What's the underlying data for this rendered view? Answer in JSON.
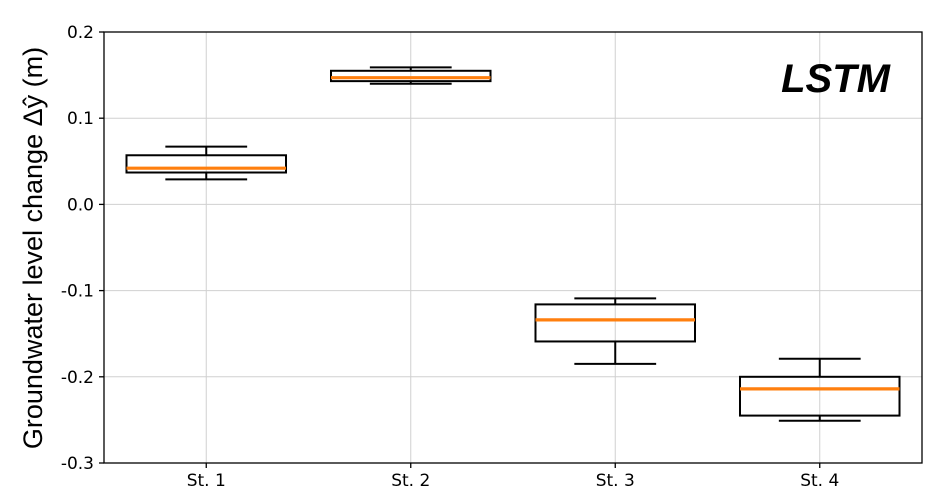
{
  "chart_data": {
    "type": "box",
    "title": "",
    "xlabel": "",
    "ylabel": "Groundwater level change Δŷ (m)",
    "annotation": "LSTM",
    "categories": [
      "St. 1",
      "St. 2",
      "St. 3",
      "St. 4"
    ],
    "y_ticks": [
      "0.2",
      "0.1",
      "0.0",
      "-0.1",
      "-0.2",
      "-0.3"
    ],
    "y_tick_values": [
      0.2,
      0.1,
      0.0,
      -0.1,
      -0.2,
      -0.3
    ],
    "ylim": [
      -0.3,
      0.2
    ],
    "grid": true,
    "box_color": "#000000",
    "median_color": "#ff7f0e",
    "boxes": [
      {
        "label": "St. 1",
        "whislo": 0.029,
        "q1": 0.037,
        "median": 0.042,
        "q3": 0.057,
        "whishi": 0.067
      },
      {
        "label": "St. 2",
        "whislo": 0.14,
        "q1": 0.143,
        "median": 0.147,
        "q3": 0.155,
        "whishi": 0.159
      },
      {
        "label": "St. 3",
        "whislo": -0.185,
        "q1": -0.159,
        "median": -0.134,
        "q3": -0.116,
        "whishi": -0.109
      },
      {
        "label": "St. 4",
        "whislo": -0.251,
        "q1": -0.245,
        "median": -0.214,
        "q3": -0.2,
        "whishi": -0.179
      }
    ]
  }
}
